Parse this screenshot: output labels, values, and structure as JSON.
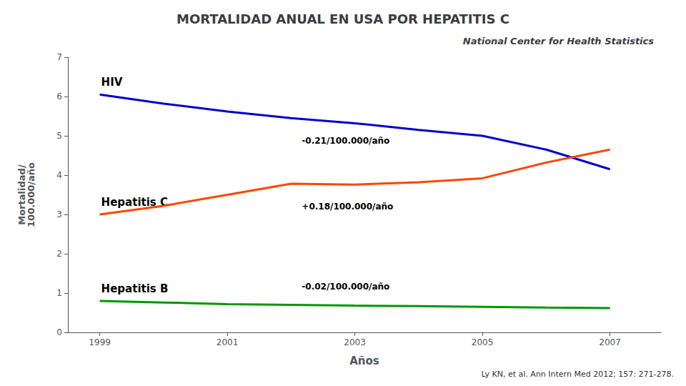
{
  "chart_data": {
    "type": "line",
    "title": "MORTALIDAD ANUAL EN USA POR HEPATITIS C",
    "subtitle": "National Center for Health Statistics",
    "xlabel": "Años",
    "ylabel": "Mortalidad/\n100.000/año",
    "x": [
      1999,
      2000,
      2001,
      2002,
      2003,
      2004,
      2005,
      2006,
      2007
    ],
    "xlim": [
      1998.5,
      2007.8
    ],
    "xticks": [
      1999,
      2001,
      2003,
      2005,
      2007
    ],
    "ylim": [
      0,
      7
    ],
    "yticks": [
      0,
      1,
      2,
      3,
      4,
      5,
      6,
      7
    ],
    "grid": false,
    "series": [
      {
        "name": "HIV",
        "color": "#0000cc",
        "annotation": "-0.21/100.000/año",
        "values": [
          6.05,
          5.82,
          5.62,
          5.45,
          5.32,
          5.15,
          5.0,
          4.65,
          4.15
        ]
      },
      {
        "name": "Hepatitis C",
        "color": "#ff4500",
        "annotation": "+0.18/100.000/año",
        "values": [
          3.0,
          3.22,
          3.5,
          3.78,
          3.76,
          3.82,
          3.92,
          4.32,
          4.65
        ]
      },
      {
        "name": "Hepatitis B",
        "color": "#009900",
        "annotation": "-0.02/100.000/año",
        "values": [
          0.8,
          0.76,
          0.72,
          0.7,
          0.68,
          0.67,
          0.65,
          0.63,
          0.62
        ]
      }
    ],
    "footnote": "Ly KN, et al. Ann Intern Med 2012; 157: 271-278."
  }
}
